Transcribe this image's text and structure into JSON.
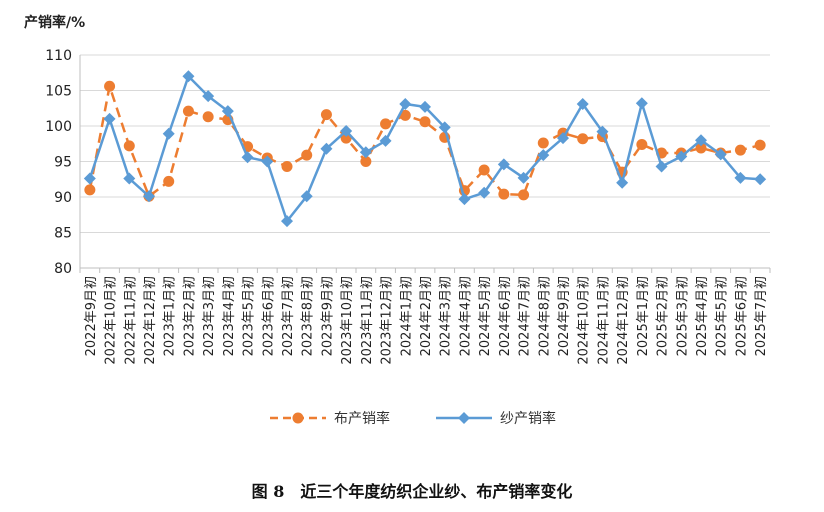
{
  "chart_data": {
    "type": "line",
    "ylabel": "产销率/%",
    "ylim": [
      80,
      110
    ],
    "yticks": [
      80,
      85,
      90,
      95,
      100,
      105,
      110
    ],
    "grid": true,
    "legend_position": "bottom",
    "categories": [
      "2022年9月初",
      "2022年10月初",
      "2022年11月初",
      "2022年12月初",
      "2023年1月初",
      "2023年2月初",
      "2023年3月初",
      "2023年4月初",
      "2023年5月初",
      "2023年6月初",
      "2023年7月初",
      "2023年8月初",
      "2023年9月初",
      "2023年10月初",
      "2023年11月初",
      "2023年12月初",
      "2024年1月初",
      "2024年2月初",
      "2024年3月初",
      "2024年4月初",
      "2024年5月初",
      "2024年6月初",
      "2024年7月初",
      "2024年8月初",
      "2024年9月初",
      "2024年10月初",
      "2024年11月初",
      "2024年12月初",
      "2025年1月初",
      "2025年2月初",
      "2025年3月初",
      "2025年4月初",
      "2025年5月初",
      "2025年6月初",
      "2025年7月初"
    ],
    "series": [
      {
        "name": "布产销率",
        "color": "#ED7D31",
        "style": "dashed",
        "marker": "circle",
        "values": [
          91.0,
          105.6,
          97.2,
          90.1,
          92.2,
          102.1,
          101.3,
          100.9,
          97.1,
          95.5,
          94.3,
          95.9,
          101.6,
          98.3,
          95.0,
          100.3,
          101.5,
          100.6,
          98.4,
          90.9,
          93.8,
          90.4,
          90.3,
          97.6,
          99.0,
          98.2,
          98.5,
          93.5,
          97.4,
          96.2,
          96.2,
          96.9,
          96.2,
          96.6,
          97.3
        ]
      },
      {
        "name": "纱产销率",
        "color": "#5B9BD5",
        "style": "solid",
        "marker": "diamond",
        "values": [
          92.6,
          101.0,
          92.6,
          90.1,
          98.9,
          107.0,
          104.2,
          102.1,
          95.6,
          95.0,
          86.6,
          90.1,
          96.8,
          99.3,
          96.3,
          97.9,
          103.1,
          102.7,
          99.8,
          89.7,
          90.6,
          94.6,
          92.7,
          95.9,
          98.3,
          103.1,
          99.2,
          92.0,
          103.2,
          94.3,
          95.7,
          98.0,
          96.0,
          92.7,
          92.5
        ]
      }
    ]
  },
  "caption": "图 8　近三个年度纺织企业纱、布产销率变化"
}
